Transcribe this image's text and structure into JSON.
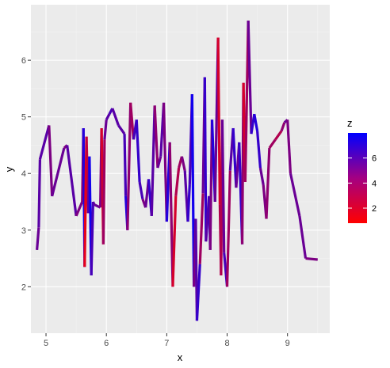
{
  "chart_data": {
    "type": "line",
    "title": "",
    "xlabel": "x",
    "ylabel": "y",
    "xlim": [
      4.75,
      9.7
    ],
    "ylim": [
      1.18,
      6.98
    ],
    "x_ticks": [
      5,
      6,
      7,
      8,
      9
    ],
    "y_ticks": [
      2,
      3,
      4,
      5,
      6
    ],
    "x_minor": [
      5.5,
      6.5,
      7.5,
      8.5,
      9.5
    ],
    "y_minor": [
      2.5,
      3.5,
      4.5,
      5.5,
      6.5
    ],
    "grid": true,
    "colors": {
      "panel": "#ebebeb",
      "grid_major": "#ffffff",
      "grid_minor": "#f4f4f4",
      "low": "#ff0000",
      "high": "#0000ff"
    },
    "legend": {
      "title": "z",
      "position": "right",
      "breaks": [
        2,
        4,
        6
      ],
      "zlim": [
        0.8,
        8.0
      ]
    },
    "series": [
      {
        "x": [
          4.85,
          4.88,
          4.9,
          5.05,
          5.1,
          5.3,
          5.35,
          5.5,
          5.6,
          5.62,
          5.64,
          5.67,
          5.7,
          5.72,
          5.75,
          5.78,
          5.8,
          5.9,
          5.92,
          5.95,
          5.97,
          6.0,
          6.05,
          6.1,
          6.2,
          6.3,
          6.32,
          6.35,
          6.4,
          6.45,
          6.5,
          6.55,
          6.6,
          6.65,
          6.7,
          6.75,
          6.8,
          6.85,
          6.9,
          6.95,
          7.0,
          7.05,
          7.1,
          7.15,
          7.2,
          7.25,
          7.3,
          7.35,
          7.38,
          7.42,
          7.45,
          7.48,
          7.5,
          7.55,
          7.6,
          7.63,
          7.65,
          7.7,
          7.72,
          7.75,
          7.8,
          7.85,
          7.88,
          7.9,
          7.92,
          7.95,
          8.0,
          8.05,
          8.1,
          8.15,
          8.2,
          8.25,
          8.27,
          8.3,
          8.35,
          8.4,
          8.45,
          8.5,
          8.55,
          8.6,
          8.65,
          8.7,
          8.8,
          8.9,
          8.95,
          9.0,
          9.05,
          9.2,
          9.3,
          9.5
        ],
        "y": [
          2.65,
          3.05,
          4.25,
          4.85,
          3.6,
          4.45,
          4.5,
          3.25,
          3.5,
          4.8,
          2.35,
          4.65,
          3.3,
          4.3,
          2.2,
          3.5,
          3.45,
          3.4,
          4.8,
          2.75,
          4.6,
          4.95,
          5.05,
          5.15,
          4.85,
          4.7,
          3.6,
          3.0,
          5.25,
          4.6,
          4.95,
          3.85,
          3.55,
          3.4,
          3.9,
          3.25,
          5.2,
          4.1,
          4.3,
          5.25,
          3.15,
          4.55,
          2.0,
          3.6,
          4.1,
          4.3,
          4.05,
          3.15,
          3.8,
          5.4,
          2.0,
          3.2,
          1.4,
          2.4,
          3.65,
          5.7,
          2.8,
          3.6,
          2.65,
          4.95,
          3.5,
          6.4,
          3.45,
          2.2,
          4.95,
          2.6,
          2.0,
          4.05,
          4.8,
          3.75,
          4.55,
          2.75,
          5.6,
          3.85,
          6.7,
          4.7,
          5.05,
          4.75,
          4.1,
          3.8,
          3.2,
          4.45,
          4.6,
          4.75,
          4.9,
          4.95,
          4.0,
          3.25,
          2.5,
          2.48
        ],
        "z": [
          5.0,
          5.5,
          5.5,
          4.5,
          5.0,
          4.5,
          5.5,
          4.5,
          4.0,
          7.0,
          1.5,
          2.5,
          5.5,
          7.5,
          6.0,
          5.5,
          5.0,
          4.5,
          2.0,
          3.5,
          5.0,
          5.5,
          6.0,
          5.5,
          5.5,
          6.0,
          7.0,
          4.0,
          3.5,
          6.0,
          6.5,
          6.0,
          4.5,
          5.0,
          6.5,
          5.5,
          4.0,
          5.0,
          5.5,
          4.5,
          7.0,
          4.0,
          2.0,
          3.0,
          3.5,
          4.5,
          5.5,
          6.5,
          6.0,
          7.5,
          4.5,
          5.5,
          6.5,
          3.5,
          5.0,
          6.5,
          5.5,
          6.0,
          4.5,
          7.0,
          5.0,
          2.0,
          3.0,
          3.0,
          5.0,
          6.0,
          3.5,
          5.5,
          6.5,
          5.0,
          6.5,
          4.0,
          2.0,
          3.5,
          5.0,
          6.5,
          7.0,
          6.5,
          5.0,
          4.5,
          4.0,
          3.5,
          3.0,
          4.0,
          5.0,
          4.5,
          5.0,
          5.0,
          4.5,
          4.5
        ]
      }
    ]
  }
}
